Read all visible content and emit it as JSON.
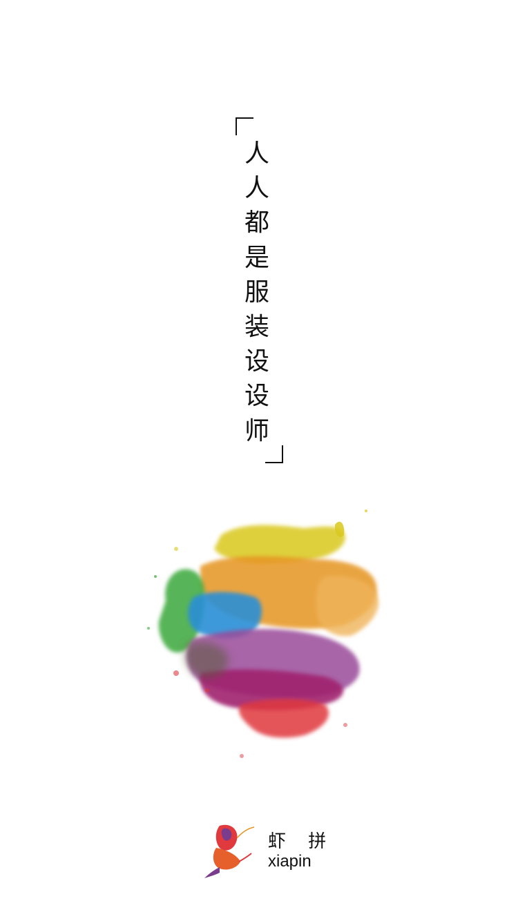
{
  "slogan": {
    "chars": [
      "人",
      "人",
      "都",
      "是",
      "服",
      "装",
      "设",
      "设",
      "师"
    ]
  },
  "brand": {
    "name_cn": "虾 拼",
    "name_en": "xiapin",
    "logo_icon": "shrimp-logo-icon"
  },
  "colors": {
    "background": "#ffffff",
    "text": "#111111",
    "yellow": "#d9c81e",
    "orange": "#e69520",
    "green": "#3aa83a",
    "blue": "#2a8fd6",
    "magenta": "#a0246e",
    "red": "#e0393e",
    "purple": "#7a3c8c"
  }
}
